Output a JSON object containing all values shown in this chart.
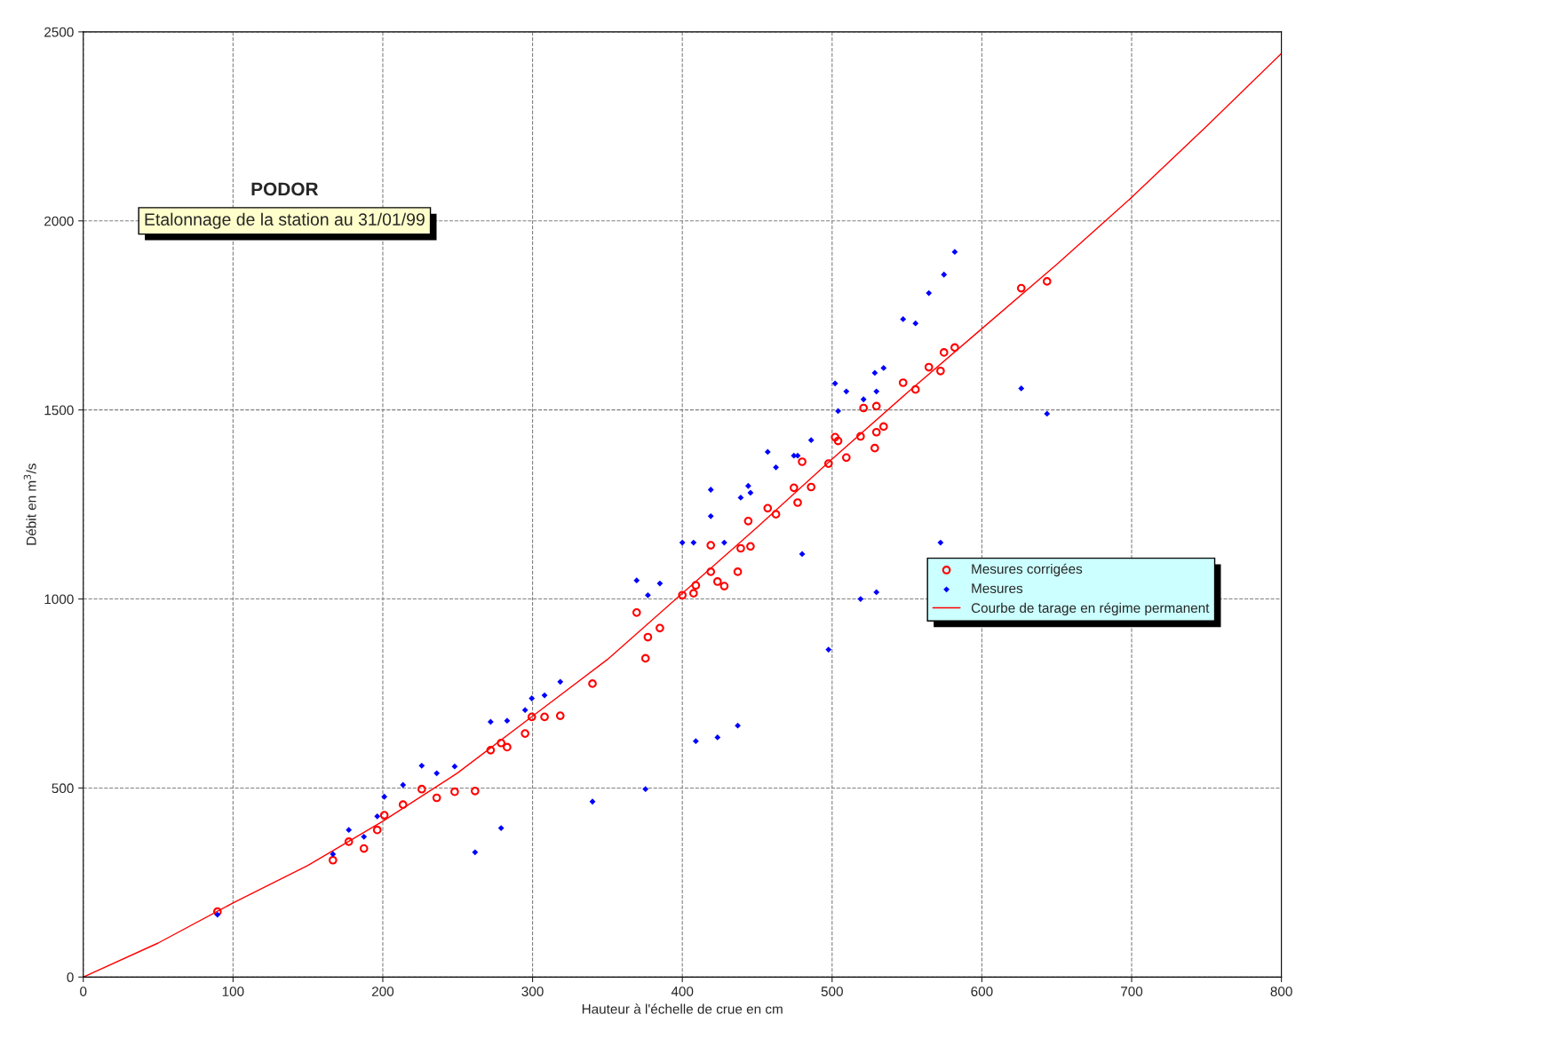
{
  "chart_data": {
    "type": "scatter",
    "title": "PODOR",
    "subtitle": "Etalonnage de la station au 31/01/99",
    "xlabel": "Hauteur à l'échelle de crue en cm",
    "ylabel": "Débit en m$^{3}$/s",
    "xlim": [
      0,
      800
    ],
    "ylim": [
      0,
      2500
    ],
    "xticks": [
      0,
      100,
      200,
      300,
      400,
      500,
      600,
      700,
      800
    ],
    "yticks": [
      0,
      500,
      1000,
      1500,
      2000,
      2500
    ],
    "grid": true,
    "legend": "right",
    "series": [
      {
        "name": "Mesures corrigées",
        "color": "#ff0000",
        "marker": "circle",
        "x": [
          89.6,
          166.7,
          177.3,
          187.4,
          196.3,
          201,
          213.5,
          226,
          236,
          248,
          261.6,
          272,
          279,
          283,
          295,
          299.5,
          308,
          318.5,
          340,
          369.5,
          375.4,
          377,
          385,
          400,
          407.5,
          409,
          419,
          419,
          423.5,
          428,
          437,
          439,
          444,
          445.5,
          457,
          462.5,
          474.5,
          477,
          480,
          486,
          497.6,
          502,
          504,
          509.5,
          519,
          521,
          528.5,
          529.6,
          529.6,
          534.4,
          547.4,
          555.7,
          564.6,
          572.4,
          574.7,
          581.9,
          626.3,
          643.5
        ],
        "values": [
          173,
          309,
          358,
          340,
          389,
          428,
          456,
          497,
          474,
          490,
          492,
          600,
          619,
          608,
          644,
          688,
          688,
          691,
          776,
          964,
          843,
          899,
          923,
          1010,
          1015,
          1036,
          1142,
          1072,
          1046,
          1034,
          1072,
          1134,
          1206,
          1139,
          1240,
          1224,
          1294,
          1255,
          1363,
          1296,
          1358,
          1428,
          1418,
          1374,
          1430,
          1505,
          1399,
          1441,
          1510,
          1456,
          1572,
          1554,
          1613,
          1603,
          1652,
          1665,
          1822,
          1840
        ]
      },
      {
        "name": "Mesures",
        "color": "#0000ff",
        "marker": "diamond",
        "x": [
          89.6,
          166.7,
          177.3,
          187.4,
          196.3,
          201,
          213.5,
          226,
          236,
          248,
          261.6,
          272,
          279,
          283,
          295,
          299.5,
          308,
          318.5,
          340,
          369.5,
          375.4,
          377,
          385,
          400,
          407.5,
          409,
          419,
          419,
          423.5,
          428,
          437,
          439,
          444,
          445.5,
          457,
          462.5,
          474.5,
          477,
          480,
          486,
          497.6,
          502,
          504,
          509.5,
          519,
          521,
          528.5,
          529.6,
          529.6,
          534.4,
          547.4,
          555.7,
          564.6,
          572.4,
          574.7,
          581.9,
          626.3,
          643.5
        ],
        "values": [
          165,
          325,
          389,
          371,
          425,
          477,
          508,
          559,
          539,
          557,
          330,
          675,
          394,
          678,
          706,
          737,
          745,
          781,
          464,
          1049,
          497,
          1010,
          1041,
          1149,
          1149,
          624,
          1289,
          1219,
          634,
          1149,
          665,
          1268,
          1299,
          1281,
          1389,
          1348,
          1379,
          1379,
          1119,
          1420,
          866,
          1570,
          1497,
          1549,
          1000,
          1528,
          1598,
          1549,
          1018,
          1611,
          1740,
          1729,
          1809,
          1149,
          1858,
          1918,
          1557,
          1490
        ]
      },
      {
        "name": "Courbe de tarage en régime permanent",
        "type": "line",
        "color": "#ff0000",
        "marker": "none",
        "line_style": "solid",
        "x": [
          0,
          50,
          100,
          150,
          200,
          250,
          300,
          350,
          400,
          450,
          500,
          550,
          600,
          650,
          700,
          750,
          800
        ],
        "values": [
          0,
          90,
          196,
          295,
          412,
          540,
          690,
          840,
          1015,
          1190,
          1370,
          1545,
          1715,
          1885,
          2062,
          2250,
          2443
        ]
      }
    ]
  }
}
